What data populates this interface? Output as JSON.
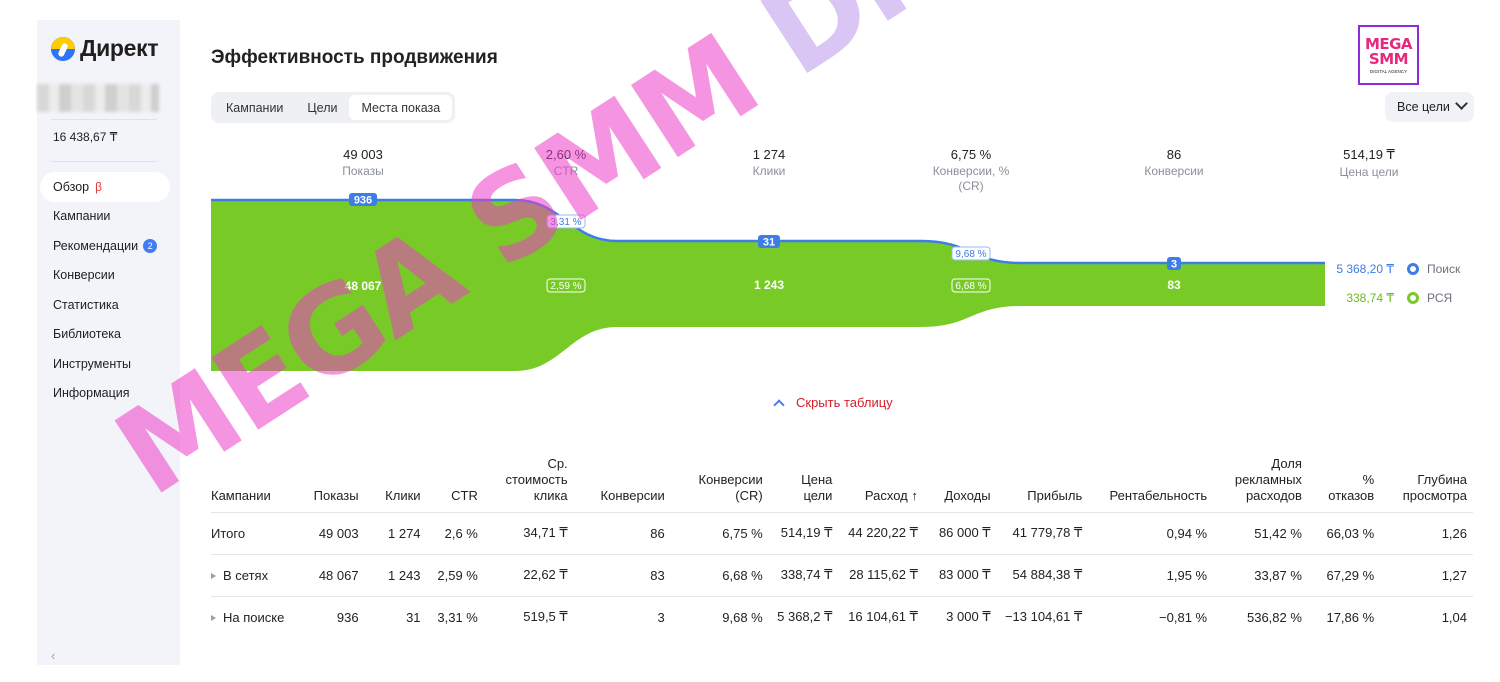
{
  "sidebar": {
    "logo": "Директ",
    "balance": "16 438,67 ₸",
    "items": [
      {
        "label": "Обзор",
        "badge": "β",
        "active": true
      },
      {
        "label": "Кампании"
      },
      {
        "label": "Рекомендации",
        "count": "2"
      },
      {
        "label": "Конверсии"
      },
      {
        "label": "Статистика"
      },
      {
        "label": "Библиотека"
      },
      {
        "label": "Инструменты"
      },
      {
        "label": "Информация"
      }
    ],
    "collapse_icon": "chevron-left-icon"
  },
  "header": {
    "title": "Эффективность продвижения",
    "tabs": [
      "Кампании",
      "Цели",
      "Места показа"
    ],
    "active_tab": 2,
    "goals_select": "Все цели"
  },
  "brand": {
    "line1": "MEGA",
    "line2": "SMM",
    "small": "DIGITAL AGENCY"
  },
  "funnel": {
    "metrics": [
      {
        "value": "49 003",
        "label": "Показы"
      },
      {
        "value": "2,60 %",
        "label": "CTR"
      },
      {
        "value": "1 274",
        "label": "Клики"
      },
      {
        "value": "6,75 %",
        "label": "Конверсии, % (CR)"
      },
      {
        "value": "86",
        "label": "Конверсии"
      },
      {
        "value": "514,19 ₸",
        "label": "Цена цели"
      }
    ],
    "search_labels": [
      "936",
      "3,31 %",
      "31",
      "9,68 %",
      "3"
    ],
    "network_labels": [
      "48 067",
      "2,59 %",
      "1 243",
      "6,68 %",
      "83"
    ],
    "legend": [
      {
        "value": "5 368,20 ₸",
        "label": "Поиск",
        "color": "#3d7de6"
      },
      {
        "value": "338,74 ₸",
        "label": "РСЯ",
        "color": "#7ac929"
      }
    ],
    "colors": {
      "network": "#78cb26",
      "search": "#3d7de6",
      "pill": "#3d7de6"
    }
  },
  "hide_table": "Скрыть таблицу",
  "table": {
    "headers": [
      "Кампании",
      "Показы",
      "Клики",
      "CTR",
      "Ср. стоимость клика",
      "Конверсии",
      "Конверсии (CR)",
      "Цена цели",
      "Расход ↑",
      "Доходы",
      "Прибыль",
      "Рентабельность",
      "Доля рекламных расходов",
      "% отказов",
      "Глубина просмотра"
    ],
    "rows": [
      [
        "Итого",
        "49 003",
        "1 274",
        "2,6 %",
        "34,71 ₸",
        "86",
        "6,75 %",
        "514,19 ₸",
        "44 220,22 ₸",
        "86 000 ₸",
        "41 779,78 ₸",
        "0,94 %",
        "51,42 %",
        "66,03 %",
        "1,26"
      ],
      [
        "В сетях",
        "48 067",
        "1 243",
        "2,59 %",
        "22,62 ₸",
        "83",
        "6,68 %",
        "338,74 ₸",
        "28 115,62 ₸",
        "83 000 ₸",
        "54 884,38 ₸",
        "1,95 %",
        "33,87 %",
        "67,29 %",
        "1,27"
      ],
      [
        "На поиске",
        "936",
        "31",
        "3,31 %",
        "519,5 ₸",
        "3",
        "9,68 %",
        "5 368,2 ₸",
        "16 104,61 ₸",
        "3 000 ₸",
        "−13 104,61 ₸",
        "−0,81 %",
        "536,82 %",
        "17,86 %",
        "1,04"
      ]
    ]
  },
  "watermark": {
    "part1": "MEGA SMM",
    "part2": " DIGITAL AGENCY"
  }
}
